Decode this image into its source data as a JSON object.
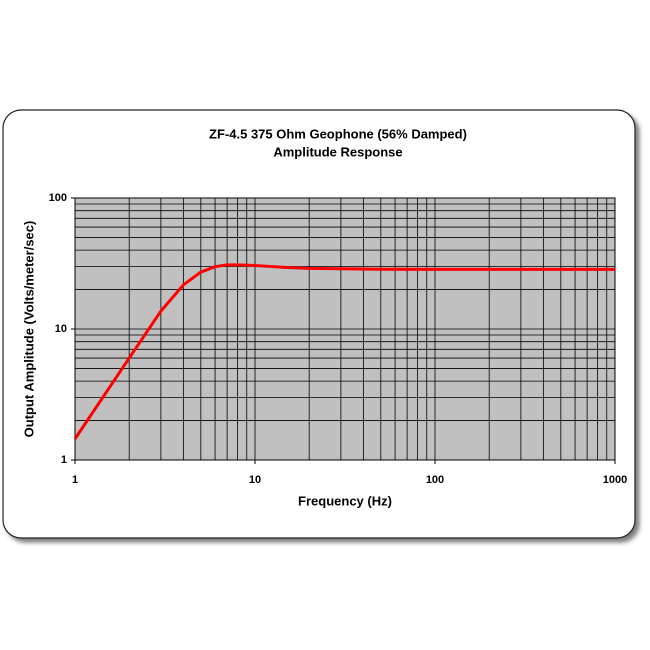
{
  "chart_data": {
    "type": "line",
    "title": "ZF-4.5  375 Ohm Geophone (56% Damped)",
    "subtitle": "Amplitude Response",
    "x_label": "Frequency (Hz)",
    "y_label": "Output Amplitude (Volts/meter/sec)",
    "x": [
      1,
      2,
      3,
      4,
      5,
      6,
      7,
      8,
      10,
      15,
      20,
      50,
      100,
      1000
    ],
    "series": [
      {
        "name": "Amplitude",
        "color": "#ff0000",
        "values": [
          1.45,
          6.0,
          13.7,
          21.7,
          27.2,
          29.9,
          30.9,
          30.9,
          30.5,
          29.5,
          29.0,
          28.6,
          28.5,
          28.5
        ]
      }
    ],
    "xlim": [
      1,
      1000
    ],
    "ylim": [
      1,
      100
    ],
    "xticks": [
      1,
      10,
      100,
      1000
    ],
    "yticks": [
      1,
      10,
      100
    ],
    "xscale": "log",
    "yscale": "log",
    "grid": true,
    "minor_grid": true,
    "legend": false,
    "plot_background": "#c0c0c0"
  }
}
